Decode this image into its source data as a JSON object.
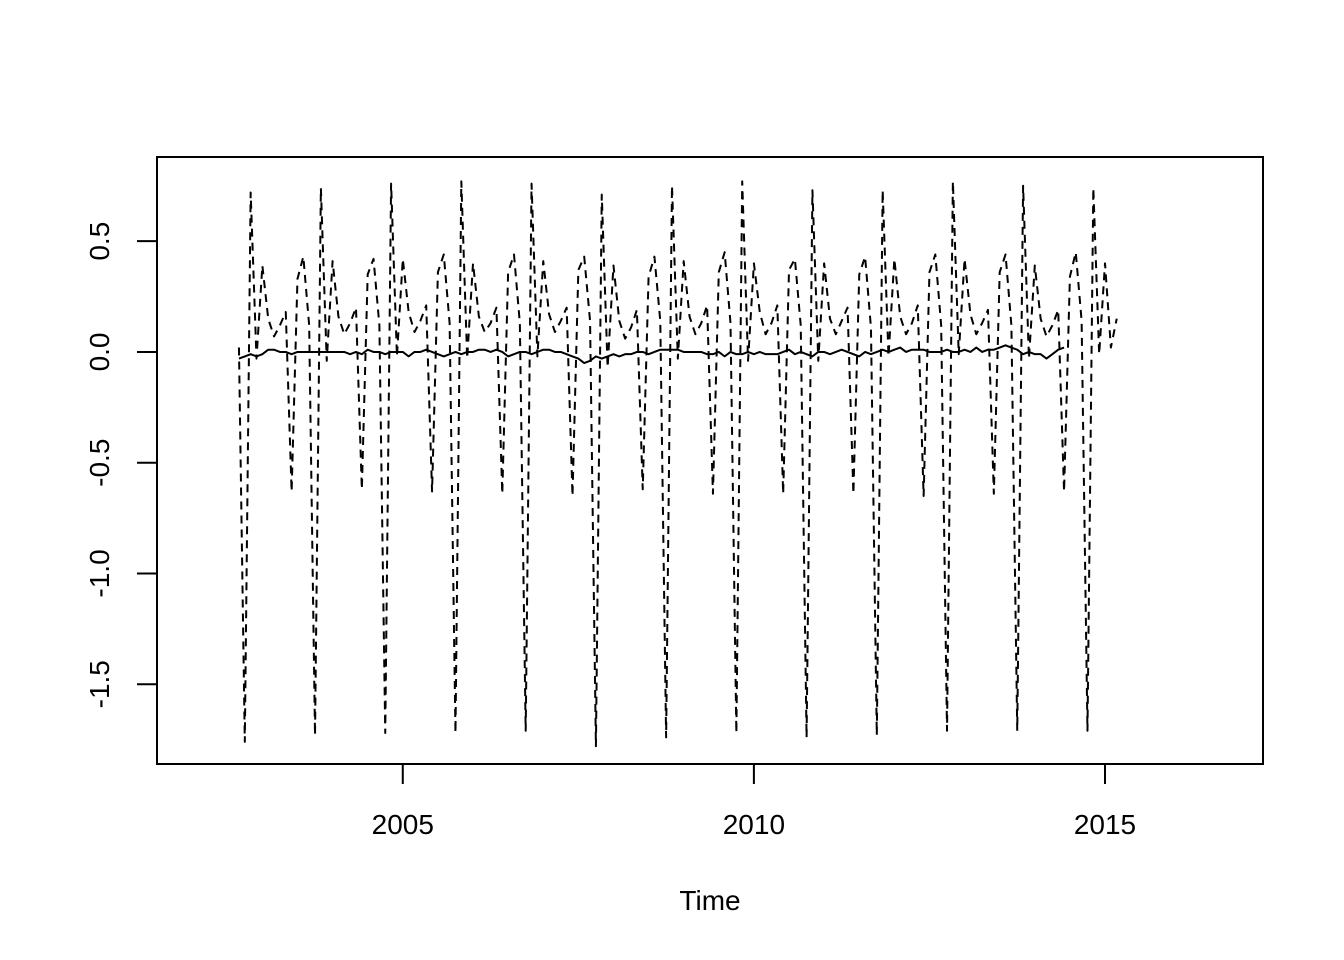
{
  "chart_data": {
    "type": "line",
    "title": "",
    "xlabel": "Time",
    "ylabel": "",
    "xlim": [
      2001.5,
      2017.25
    ],
    "ylim": [
      -1.86,
      0.88
    ],
    "grid": false,
    "legend": "none",
    "x_ticks": [
      2005,
      2010,
      2015
    ],
    "x_tick_labels": [
      "2005",
      "2010",
      "2015"
    ],
    "y_ticks": [
      0.5,
      0.0,
      -0.5,
      -1.0,
      -1.5
    ],
    "y_tick_labels": [
      "0.5",
      "0.0",
      "-0.5",
      "-1.0",
      "-1.5"
    ],
    "x_start": 2002.667,
    "frequency": 12,
    "series": [
      {
        "line_style": "solid",
        "color": "#000000",
        "values": [
          -0.03,
          -0.02,
          -0.01,
          -0.02,
          -0.01,
          0.01,
          0.01,
          0.0,
          0.0,
          -0.01,
          0.0,
          0.0,
          0.0,
          0.0,
          0.0,
          0.0,
          0.0,
          0.0,
          0.0,
          -0.01,
          0.0,
          -0.01,
          0.01,
          0.0,
          0.0,
          -0.01,
          0.0,
          0.0,
          0.0,
          -0.02,
          0.0,
          0.0,
          0.01,
          0.0,
          -0.01,
          -0.02,
          -0.01,
          0.0,
          -0.01,
          0.0,
          0.0,
          0.01,
          0.01,
          0.0,
          0.01,
          0.0,
          -0.02,
          -0.01,
          0.0,
          0.0,
          -0.01,
          0.0,
          0.01,
          0.01,
          0.0,
          0.0,
          -0.01,
          -0.02,
          -0.03,
          -0.05,
          -0.04,
          -0.02,
          -0.03,
          -0.02,
          -0.01,
          -0.02,
          -0.01,
          -0.01,
          0.0,
          0.0,
          -0.01,
          0.0,
          0.01,
          0.01,
          0.01,
          0.01,
          0.0,
          0.0,
          0.0,
          0.0,
          -0.01,
          -0.01,
          0.0,
          -0.02,
          0.0,
          -0.01,
          -0.01,
          0.0,
          -0.01,
          0.0,
          -0.01,
          -0.01,
          -0.01,
          0.0,
          0.01,
          -0.01,
          0.0,
          -0.01,
          -0.02,
          0.0,
          0.0,
          -0.01,
          0.0,
          0.01,
          0.0,
          -0.01,
          -0.02,
          0.0,
          -0.01,
          0.0,
          0.01,
          0.0,
          0.01,
          0.02,
          0.0,
          0.01,
          0.01,
          0.01,
          0.0,
          0.0,
          0.0,
          0.01,
          0.0,
          0.0,
          0.01,
          0.0,
          0.02,
          0.0,
          0.01,
          0.01,
          0.02,
          0.03,
          0.02,
          0.01,
          -0.01,
          0.0,
          -0.01,
          -0.01,
          -0.03,
          -0.01,
          0.01,
          0.02
        ]
      },
      {
        "line_style": "dashed",
        "color": "#000000",
        "values": [
          0.02,
          -1.76,
          0.72,
          -0.03,
          0.39,
          0.15,
          0.07,
          0.12,
          0.18,
          -0.63,
          0.33,
          0.43,
          0.12,
          -1.73,
          0.74,
          -0.04,
          0.41,
          0.16,
          0.08,
          0.13,
          0.2,
          -0.62,
          0.35,
          0.42,
          0.12,
          -1.72,
          0.76,
          -0.02,
          0.42,
          0.18,
          0.09,
          0.14,
          0.21,
          -0.63,
          0.36,
          0.44,
          0.13,
          -1.72,
          0.77,
          -0.03,
          0.4,
          0.16,
          0.09,
          0.13,
          0.2,
          -0.64,
          0.36,
          0.44,
          0.13,
          -1.71,
          0.76,
          -0.02,
          0.41,
          0.17,
          0.09,
          0.14,
          0.2,
          -0.65,
          0.37,
          0.43,
          0.14,
          -1.78,
          0.71,
          -0.07,
          0.39,
          0.14,
          0.06,
          0.11,
          0.19,
          -0.62,
          0.34,
          0.43,
          0.14,
          -1.74,
          0.75,
          -0.03,
          0.41,
          0.16,
          0.08,
          0.13,
          0.21,
          -0.64,
          0.36,
          0.45,
          0.13,
          -1.72,
          0.77,
          -0.04,
          0.4,
          0.18,
          0.08,
          0.13,
          0.21,
          -0.64,
          0.37,
          0.42,
          0.12,
          -1.74,
          0.73,
          -0.04,
          0.4,
          0.15,
          0.08,
          0.14,
          0.2,
          -0.64,
          0.35,
          0.43,
          0.11,
          -1.73,
          0.73,
          -0.02,
          0.42,
          0.16,
          0.08,
          0.13,
          0.21,
          -0.65,
          0.36,
          0.44,
          0.12,
          -1.71,
          0.77,
          -0.01,
          0.42,
          0.17,
          0.08,
          0.13,
          0.19,
          -0.64,
          0.36,
          0.44,
          0.12,
          -1.71,
          0.75,
          -0.03,
          0.39,
          0.15,
          0.07,
          0.12,
          0.19,
          -0.63,
          0.34,
          0.45,
          0.14,
          -1.71,
          0.74,
          -0.01,
          0.4,
          0.02,
          0.15
        ]
      }
    ]
  }
}
